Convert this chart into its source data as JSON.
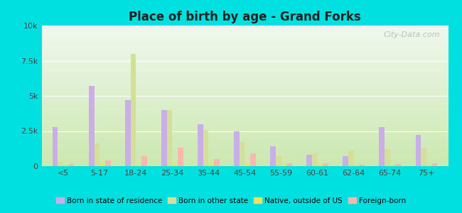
{
  "title": "Place of birth by age - Grand Forks",
  "categories": [
    "<5",
    "5-17",
    "18-24",
    "25-34",
    "35-44",
    "45-54",
    "55-59",
    "60-61",
    "62-64",
    "65-74",
    "75+"
  ],
  "series": {
    "Born in state of residence": [
      2800,
      5700,
      4700,
      4000,
      3000,
      2500,
      1400,
      800,
      700,
      2800,
      2200
    ],
    "Born in other state": [
      300,
      1600,
      8000,
      4000,
      2600,
      1700,
      700,
      900,
      1100,
      1200,
      1300
    ],
    "Native, outside of US": [
      100,
      200,
      100,
      150,
      150,
      200,
      150,
      150,
      100,
      100,
      100
    ],
    "Foreign-born": [
      150,
      400,
      700,
      1300,
      500,
      900,
      200,
      200,
      100,
      150,
      200
    ]
  },
  "colors": {
    "Born in state of residence": "#c9aee8",
    "Born in other state": "#d4e09a",
    "Native, outside of US": "#efe060",
    "Foreign-born": "#f8b8b0"
  },
  "ylim": [
    0,
    10000
  ],
  "yticks": [
    0,
    2500,
    5000,
    7500,
    10000
  ],
  "ytick_labels": [
    "0",
    "2.5k",
    "5k",
    "7.5k",
    "10k"
  ],
  "figure_background": "#00e0e0",
  "bar_width": 0.15,
  "bg_top_color": "#f0f8ee",
  "bg_bottom_color": "#cce8b0",
  "grid_color": "#ddeecc",
  "watermark": "City-Data.com"
}
